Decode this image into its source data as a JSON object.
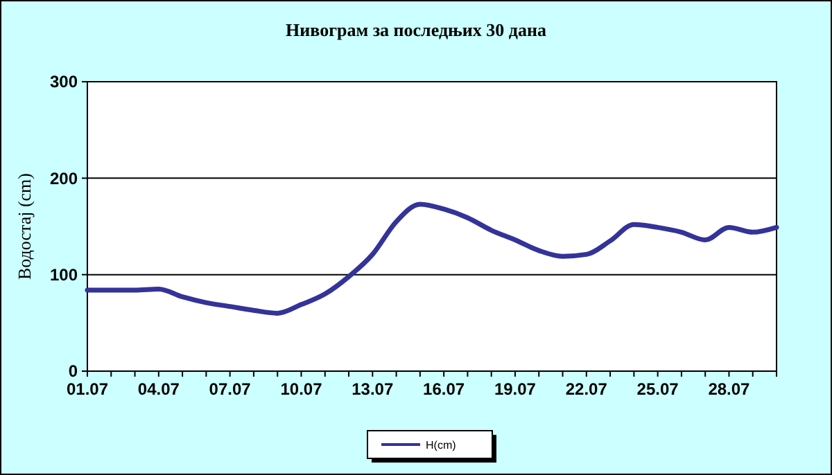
{
  "chart_data": {
    "type": "line",
    "title": "Нивограм за последњих 30 дана",
    "ylabel": "Водостај (cm)",
    "categories": [
      "01.07",
      null,
      null,
      "04.07",
      null,
      null,
      "07.07",
      null,
      null,
      "10.07",
      null,
      null,
      "13.07",
      null,
      null,
      "16.07",
      null,
      null,
      "19.07",
      null,
      null,
      "22.07",
      null,
      null,
      "25.07",
      null,
      null,
      "28.07",
      null,
      null
    ],
    "series": [
      {
        "name": "H(cm)",
        "color": "#333399",
        "values": [
          84,
          84,
          84,
          85,
          77,
          71,
          67,
          63,
          60,
          69,
          80,
          98,
          121,
          155,
          173,
          168,
          159,
          146,
          136,
          125,
          119,
          121,
          135,
          152,
          149,
          144,
          136,
          149,
          144,
          149
        ]
      }
    ],
    "ylim": [
      0,
      300
    ],
    "yticks": [
      0,
      100,
      200,
      300
    ],
    "grid": "y",
    "legend": "bottom",
    "marker": "none",
    "line_style": "solid"
  }
}
